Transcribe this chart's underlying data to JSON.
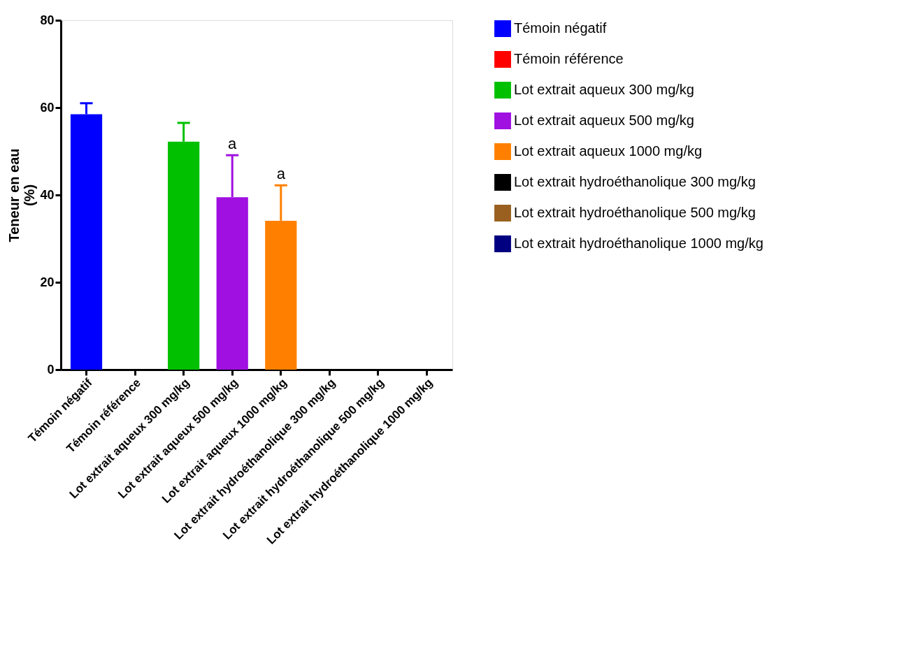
{
  "chart_data": {
    "type": "bar",
    "categories": [
      "Témoin négatif",
      "Témoin référence",
      "Lot extrait aqueux 300 mg/kg",
      "Lot extrait aqueux 500 mg/kg",
      "Lot extrait aqueux 1000 mg/kg",
      "Lot extrait hydroéthanolique 300 mg/kg",
      "Lot extrait hydroéthanolique 500 mg/kg",
      "Lot extrait hydroéthanolique 1000 mg/kg"
    ],
    "series": [
      {
        "name": "Témoin négatif",
        "color": "#0000ff",
        "values": [
          58.5,
          null,
          null,
          null,
          null,
          null,
          null,
          null
        ],
        "errors": [
          [
            58.5,
            61.0
          ],
          null,
          null,
          null,
          null,
          null,
          null,
          null
        ]
      },
      {
        "name": "Témoin référence",
        "color": "#ff0000",
        "values": [
          null,
          null,
          null,
          null,
          null,
          null,
          null,
          null
        ]
      },
      {
        "name": "Lot extrait aqueux 300 mg/kg",
        "color": "#00c000",
        "values": [
          null,
          null,
          52.2,
          null,
          null,
          null,
          null,
          null
        ],
        "errors": [
          null,
          null,
          [
            52.2,
            56.5
          ],
          null,
          null,
          null,
          null,
          null
        ]
      },
      {
        "name": "Lot extrait aqueux 500 mg/kg",
        "color": "#a010e0",
        "values": [
          null,
          null,
          null,
          39.5,
          null,
          null,
          null,
          null
        ],
        "errors": [
          null,
          null,
          null,
          [
            39.5,
            49.1
          ],
          null,
          null,
          null,
          null
        ]
      },
      {
        "name": "Lot extrait aqueux 1000 mg/kg",
        "color": "#ff8000",
        "values": [
          null,
          null,
          null,
          null,
          34.1,
          null,
          null,
          null
        ],
        "errors": [
          null,
          null,
          null,
          null,
          [
            34.1,
            42.2
          ],
          null,
          null,
          null
        ]
      },
      {
        "name": "Lot extrait hydroéthanolique 300 mg/kg",
        "color": "#000000",
        "values": [
          null,
          null,
          null,
          null,
          null,
          null,
          null,
          null
        ]
      },
      {
        "name": "Lot extrait hydroéthanolique 500 mg/kg",
        "color": "#996020",
        "values": [
          null,
          null,
          null,
          null,
          null,
          null,
          null,
          null
        ]
      },
      {
        "name": "Lot extrait hydroéthanolique 1000 mg/kg",
        "color": "#000080",
        "values": [
          null,
          null,
          null,
          null,
          null,
          null,
          null,
          null
        ]
      }
    ],
    "ylabel": "Teneur en eau\n(%)",
    "ylim": [
      0,
      80
    ],
    "yticks": [
      0,
      20,
      40,
      60,
      80
    ],
    "annotations": [
      {
        "text": "a",
        "x": "Lot extrait aqueux 500 mg/kg",
        "y": 49.1
      },
      {
        "text": "a",
        "x": "Lot extrait aqueux 1000 mg/kg",
        "y": 42.2
      }
    ],
    "grid": false,
    "legend": "right"
  }
}
